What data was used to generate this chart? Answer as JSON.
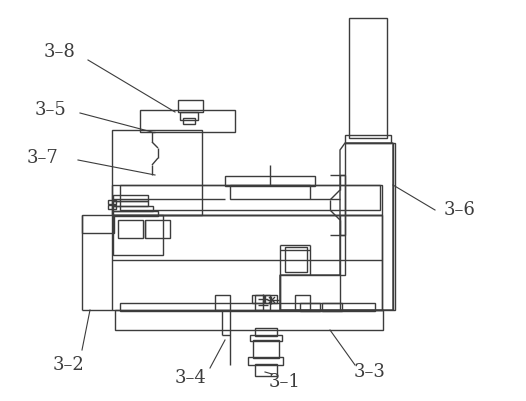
{
  "bg_color": "#ffffff",
  "line_color": "#3c3c3c",
  "label_color": "#3c3c3c",
  "label_fontsize": 13,
  "figsize": [
    5.26,
    4.01
  ],
  "dpi": 100
}
